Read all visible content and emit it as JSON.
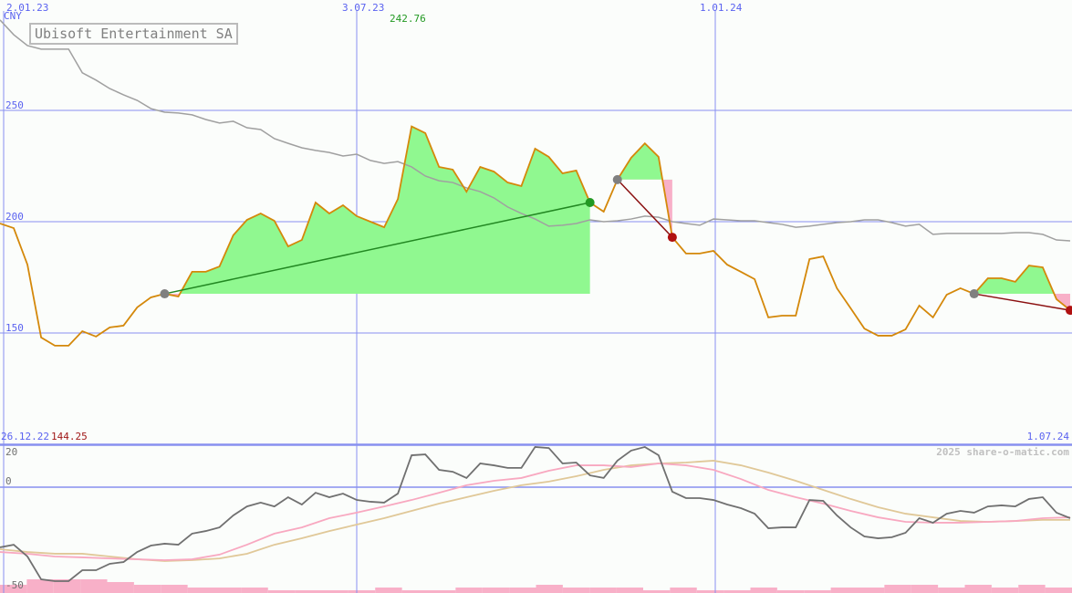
{
  "title": "Ubisoft Entertainment SA",
  "currency": "CNY",
  "watermark": "2025 share-o-matic.com",
  "colors": {
    "price": "#d4880a",
    "ma": "#a0a0a0",
    "grid": "#8890f0",
    "gain": "#90f890",
    "loss": "#f8b0c8",
    "trade_gain": "#228822",
    "trade_loss": "#8b1010",
    "osc": "#707070",
    "osc_pink": "#f8a8c0",
    "osc_tan": "#e0c898",
    "volume": "#f8b0c8"
  },
  "chart_data": [
    {
      "type": "line",
      "title": "Ubisoft Entertainment SA",
      "ylabel": "CNY",
      "ylim": [
        100,
        299
      ],
      "y_ticks": [
        "250",
        "200",
        "150"
      ],
      "x_ticks": [
        "2.01.23",
        "3.07.23",
        "1.01.24"
      ],
      "x_start_label": "26.12.22",
      "x_end_label": "1.07.24",
      "max_label": "242.76",
      "min_label": "144.25",
      "grid": true,
      "series": [
        {
          "values": [
            199.2,
            197.1,
            180.7,
            148.0,
            144.3,
            144.3,
            150.8,
            148.4,
            152.5,
            153.3,
            161.5,
            166.0,
            167.6,
            166.4,
            177.5,
            177.5,
            179.9,
            193.9,
            200.8,
            203.7,
            200.4,
            188.9,
            191.8,
            208.6,
            203.7,
            207.4,
            202.5,
            200.0,
            197.5,
            210.2,
            242.8,
            239.8,
            224.6,
            223.4,
            213.5,
            224.6,
            222.5,
            217.6,
            216.0,
            232.8,
            229.1,
            221.7,
            223.0,
            208.6,
            204.5,
            218.9,
            228.7,
            235.2,
            229.1,
            193.0,
            185.7,
            185.7,
            186.9,
            180.7,
            177.5,
            174.2,
            157.0,
            157.8,
            157.8,
            183.2,
            184.4,
            170.1,
            161.1,
            152.0,
            148.8,
            148.8,
            151.6,
            162.3,
            157.0,
            167.2,
            170.1,
            167.6,
            174.6,
            174.6,
            173.0,
            180.3,
            179.5,
            165.2,
            160.2
          ]
        },
        {
          "values": [
            290.6,
            284.0,
            279.1,
            277.5,
            277.5,
            277.5,
            266.9,
            263.6,
            259.8,
            257.0,
            254.5,
            250.8,
            249.2,
            248.8,
            248.0,
            245.9,
            244.3,
            245.1,
            242.2,
            241.4,
            237.3,
            235.2,
            233.2,
            232.0,
            231.1,
            229.5,
            230.3,
            227.5,
            226.2,
            227.0,
            224.6,
            220.5,
            218.4,
            217.6,
            215.2,
            213.5,
            210.7,
            206.6,
            203.7,
            201.2,
            198.0,
            198.4,
            199.2,
            200.8,
            200.0,
            200.4,
            201.2,
            202.5,
            202.0,
            200.0,
            199.2,
            198.4,
            201.2,
            200.8,
            200.4,
            200.4,
            199.6,
            198.8,
            197.5,
            198.0,
            198.8,
            199.6,
            200.0,
            200.8,
            200.8,
            199.6,
            198.0,
            198.8,
            194.3,
            194.7,
            194.7,
            194.7,
            194.7,
            194.7,
            195.1,
            195.1,
            194.3,
            191.8,
            191.4
          ]
        }
      ],
      "trades": [
        {
          "entry_index": 12,
          "exit_index": 43,
          "result": "gain"
        },
        {
          "entry_index": 45,
          "exit_index": 49,
          "result": "loss"
        },
        {
          "entry_index": 71,
          "exit_index": 78,
          "result": "loss"
        }
      ]
    },
    {
      "type": "line",
      "y_ticks": [
        "20",
        "0",
        "-50"
      ],
      "grid": true,
      "series": [
        {
          "values": [
            -34.7,
            -33.2,
            -40,
            -53.2,
            -54.2,
            -54.2,
            -47.9,
            -47.9,
            -44.2,
            -43.2,
            -37.4,
            -33.7,
            -32.6,
            -33.2,
            -26.8,
            -25.3,
            -23.2,
            -16.3,
            -11.1,
            -8.9,
            -11.1,
            -5.8,
            -10,
            -3.2,
            -5.8,
            -3.7,
            -7.4,
            -8.4,
            -8.9,
            -3.7,
            18.4,
            18.9,
            10,
            8.9,
            5.3,
            13.7,
            12.6,
            11.1,
            11.1,
            23.2,
            22.6,
            13.7,
            14.2,
            6.8,
            5.3,
            15.3,
            21.1,
            23.2,
            18.4,
            -2.6,
            -6.3,
            -6.3,
            -7.4,
            -10,
            -12.1,
            -15.3,
            -23.7,
            -23.2,
            -23.2,
            -7.4,
            -7.9,
            -16.3,
            -23.2,
            -28.4,
            -29.5,
            -28.9,
            -26.3,
            -17.9,
            -20.5,
            -15.3,
            -13.7,
            -14.7,
            -11.1,
            -10.5,
            -11.1,
            -6.8,
            -5.8,
            -14.7,
            -17.9
          ]
        },
        {
          "values": [
            -37.4,
            -38.4,
            -40,
            -40.5,
            -41.1,
            -41.6,
            -42.1,
            -41.6,
            -38.9,
            -33.2,
            -26.8,
            -23.2,
            -17.9,
            -14.7,
            -11.1,
            -7.4,
            -3.2,
            1.1,
            3.7,
            5.3,
            9.5,
            12.6,
            12.6,
            11.6,
            13.7,
            12.6,
            10,
            4.7,
            -1.6,
            -5.8,
            -9.5,
            -13.7,
            -17.4,
            -20,
            -20.5,
            -20.5,
            -20,
            -19.5,
            -17.9,
            -17.4
          ]
        },
        {
          "values": [
            -35.8,
            -37.4,
            -38.4,
            -38.4,
            -40,
            -41.6,
            -42.6,
            -42.1,
            -41.1,
            -38.4,
            -33.2,
            -29.5,
            -25.3,
            -21.6,
            -17.9,
            -13.7,
            -9.5,
            -5.8,
            -2.1,
            1.1,
            3.2,
            6.3,
            10,
            12.6,
            13.7,
            14.2,
            15.3,
            12.6,
            8.4,
            3.7,
            -1.6,
            -6.8,
            -11.6,
            -15.3,
            -17.4,
            -19.5,
            -20,
            -19.5,
            -18.9,
            -18.9
          ]
        }
      ],
      "volume": [
        3,
        5,
        5,
        5,
        4,
        3,
        3,
        2,
        2,
        2,
        1,
        1,
        1,
        1,
        2,
        1,
        1,
        2,
        2,
        2,
        3,
        2,
        2,
        2,
        1,
        2,
        1,
        1,
        2,
        1,
        1,
        2,
        2,
        3,
        3,
        2,
        3,
        2,
        3,
        2
      ]
    }
  ]
}
